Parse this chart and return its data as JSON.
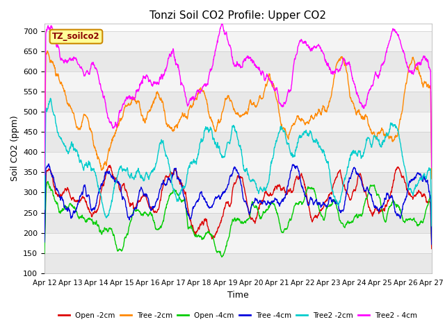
{
  "title": "Tonzi Soil CO2 Profile: Upper CO2",
  "xlabel": "Time",
  "ylabel": "Soil CO2 (ppm)",
  "ylim": [
    100,
    720
  ],
  "yticks": [
    100,
    150,
    200,
    250,
    300,
    350,
    400,
    450,
    500,
    550,
    600,
    650,
    700
  ],
  "legend_label": "TZ_soilco2",
  "series": {
    "Open -2cm": {
      "color": "#dd0000"
    },
    "Tree -2cm": {
      "color": "#ff8800"
    },
    "Open -4cm": {
      "color": "#00cc00"
    },
    "Tree -4cm": {
      "color": "#0000dd"
    },
    "Tree2 -2cm": {
      "color": "#00cccc"
    },
    "Tree2 - 4cm": {
      "color": "#ff00ff"
    }
  },
  "xtick_labels": [
    "Apr 12",
    "Apr 13",
    "Apr 14",
    "Apr 15",
    "Apr 16",
    "Apr 17",
    "Apr 18",
    "Apr 19",
    "Apr 20",
    "Apr 21",
    "Apr 22",
    "Apr 23",
    "Apr 24",
    "Apr 25",
    "Apr 26",
    "Apr 27"
  ],
  "background_color": "#ffffff",
  "stripe_dark": "#e8e8e8",
  "stripe_light": "#f4f4f4"
}
